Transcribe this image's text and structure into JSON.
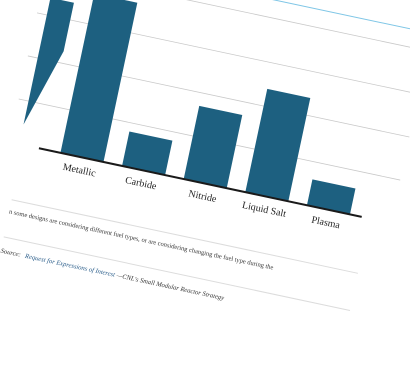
{
  "chart_data": {
    "type": "bar",
    "categories": [
      "Metallic",
      "Carbide",
      "Nitride",
      "Liquid Salt",
      "Plasma"
    ],
    "values": [
      37,
      8,
      17,
      24,
      6
    ],
    "title": "",
    "xlabel": "",
    "ylabel": "",
    "ylim": [
      0,
      40
    ],
    "grid": true,
    "legend": "none",
    "colors": {
      "bar": "#1d6080",
      "gridline": "#c9c9c9",
      "axis": "#1a1a1a",
      "accent_line": "#7fc6e6"
    }
  },
  "caption": {
    "text": "n some designs are considering different fuel types, or are considering changing the fuel type during the"
  },
  "source": {
    "label": "Source:",
    "link_text": "Request for Expressions of Interest",
    "rest": "—CNL's Small Modular Reactor Strategy"
  }
}
